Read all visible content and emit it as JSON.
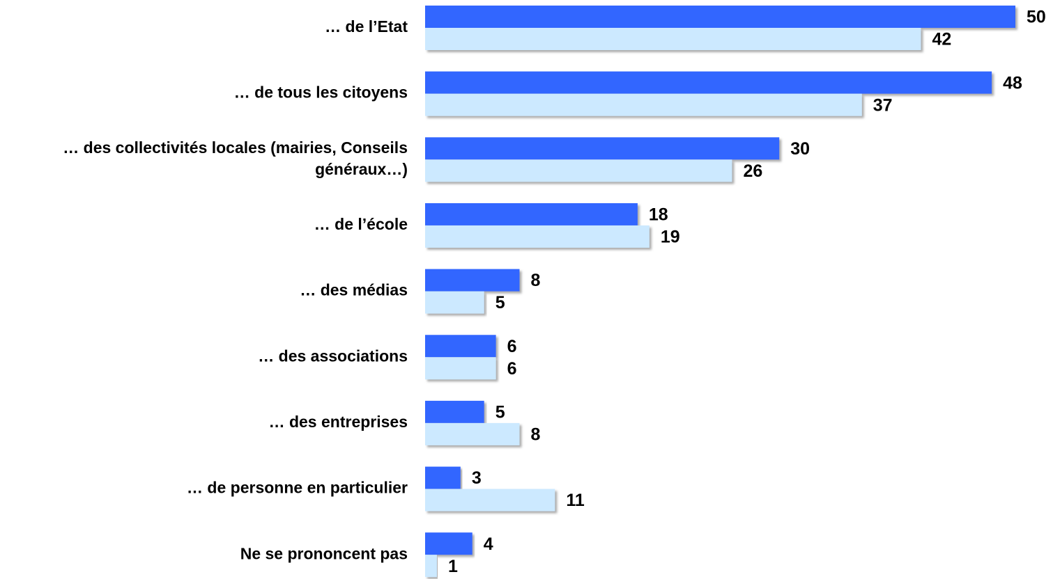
{
  "chart_data": {
    "type": "bar",
    "orientation": "horizontal",
    "categories": [
      "… de l’Etat",
      "… de tous les citoyens",
      [
        "… des collectivités locales (mairies, Conseils",
        "généraux…)"
      ],
      "… de l’école",
      "… des médias",
      "… des associations",
      "… des entreprises",
      "… de personne en particulier",
      "Ne se prononcent pas"
    ],
    "series": [
      {
        "color": "#3366ff",
        "values": [
          50,
          48,
          30,
          18,
          8,
          6,
          5,
          3,
          4
        ]
      },
      {
        "color": "#cce9ff",
        "values": [
          42,
          37,
          26,
          19,
          5,
          6,
          8,
          11,
          1
        ]
      }
    ]
  }
}
